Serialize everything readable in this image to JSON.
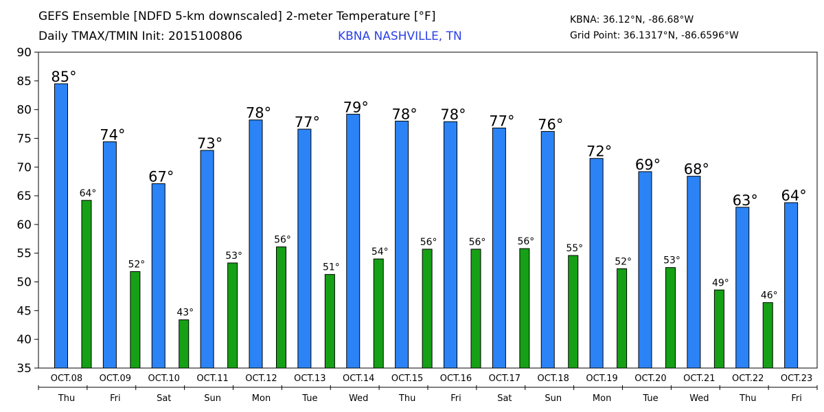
{
  "header": {
    "title": "GEFS Ensemble [NDFD 5-km downscaled] 2-meter Temperature [°F]",
    "subtitle": "Daily TMAX/TMIN Init: 2015100806",
    "station": "KBNA NASHVILLE, TN",
    "coord_station": "KBNA: 36.12°N, -86.68°W",
    "coord_grid": "Grid Point: 36.1317°N, -86.6596°W"
  },
  "colors": {
    "tmax": "#2b83f6",
    "tmin": "#16a016",
    "axis": "#000000"
  },
  "chart_data": {
    "type": "bar",
    "ylim": [
      35,
      90
    ],
    "yticks": [
      35,
      40,
      45,
      50,
      55,
      60,
      65,
      70,
      75,
      80,
      85,
      90
    ],
    "categories": [
      "OCT.08",
      "OCT.09",
      "OCT.10",
      "OCT.11",
      "OCT.12",
      "OCT.13",
      "OCT.14",
      "OCT.15",
      "OCT.16",
      "OCT.17",
      "OCT.18",
      "OCT.19",
      "OCT.20",
      "OCT.21",
      "OCT.22",
      "OCT.23"
    ],
    "weekdays": [
      "Thu",
      "Fri",
      "Sat",
      "Sun",
      "Mon",
      "Tue",
      "Wed",
      "Thu",
      "Fri",
      "Sat",
      "Sun",
      "Mon",
      "Tue",
      "Wed",
      "Thu",
      "Fri"
    ],
    "series": [
      {
        "name": "TMAX",
        "values": [
          84.5,
          74.4,
          67.1,
          72.9,
          78.2,
          76.6,
          79.2,
          78.0,
          77.9,
          76.8,
          76.2,
          71.5,
          69.2,
          68.4,
          63.0,
          63.8
        ],
        "labels": [
          "85°",
          "74°",
          "67°",
          "73°",
          "78°",
          "77°",
          "79°",
          "78°",
          "78°",
          "77°",
          "76°",
          "72°",
          "69°",
          "68°",
          "63°",
          "64°"
        ]
      },
      {
        "name": "TMIN",
        "values": [
          64.2,
          51.8,
          43.4,
          53.3,
          56.1,
          51.3,
          54.0,
          55.7,
          55.7,
          55.8,
          54.6,
          52.3,
          52.5,
          48.6,
          46.4,
          null
        ],
        "labels": [
          "64°",
          "52°",
          "43°",
          "53°",
          "56°",
          "51°",
          "54°",
          "56°",
          "56°",
          "56°",
          "55°",
          "52°",
          "53°",
          "49°",
          "46°",
          ""
        ]
      }
    ]
  }
}
